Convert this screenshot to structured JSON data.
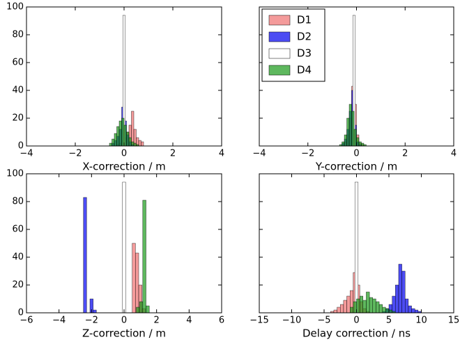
{
  "chart_data": [
    {
      "type": "histogram",
      "xlabel": "X-correction / m",
      "xlim": [
        -4,
        4
      ],
      "xticks": [
        {
          "value": -4,
          "label": "−4"
        },
        {
          "value": -2,
          "label": "−2"
        },
        0,
        2,
        4
      ],
      "ylim": [
        0,
        100
      ],
      "yticks": [
        0,
        20,
        40,
        60,
        80,
        100
      ],
      "ytick_labels": true,
      "series": [
        {
          "name": "D1",
          "color": "#f07070",
          "bins": [
            -0.3,
            -0.2,
            -0.1,
            0.0,
            0.1,
            0.2,
            0.3,
            0.4,
            0.5,
            0.6,
            0.7,
            0.8
          ],
          "values": [
            1,
            2,
            4,
            6,
            10,
            15,
            25,
            12,
            6,
            4,
            3
          ]
        },
        {
          "name": "D2",
          "color": "#0000ee",
          "bins": [
            -0.5,
            -0.4,
            -0.3,
            -0.2,
            -0.1,
            0.0,
            0.1,
            0.2,
            0.3,
            0.4
          ],
          "values": [
            2,
            4,
            7,
            12,
            28,
            18,
            8,
            3,
            1
          ]
        },
        {
          "name": "D3",
          "color": "#ffffff",
          "bins": [
            -0.05,
            0.05
          ],
          "values": [
            94
          ]
        },
        {
          "name": "D4",
          "color": "#1a9a1a",
          "bins": [
            -0.6,
            -0.5,
            -0.4,
            -0.3,
            -0.2,
            -0.1,
            0.0,
            0.1,
            0.2,
            0.3,
            0.4,
            0.5,
            0.6
          ],
          "values": [
            2,
            5,
            9,
            14,
            18,
            20,
            15,
            10,
            6,
            3,
            2,
            1
          ]
        }
      ]
    },
    {
      "type": "histogram",
      "xlabel": "Y-correction / m",
      "xlim": [
        -4,
        4
      ],
      "xticks": [
        {
          "value": -4,
          "label": "−4"
        },
        {
          "value": -2,
          "label": "−2"
        },
        0,
        2,
        4
      ],
      "ylim": [
        0,
        100
      ],
      "yticks": [
        0,
        20,
        40,
        60,
        80,
        100
      ],
      "ytick_labels": false,
      "legend": "upper left",
      "series": [
        {
          "name": "D1",
          "color": "#f07070",
          "bins": [
            -0.6,
            -0.5,
            -0.4,
            -0.3,
            -0.2,
            -0.1,
            0.0,
            0.1,
            0.2,
            0.3
          ],
          "values": [
            1,
            3,
            8,
            20,
            43,
            30,
            8,
            2,
            1
          ]
        },
        {
          "name": "D2",
          "color": "#0000ee",
          "bins": [
            -0.6,
            -0.5,
            -0.4,
            -0.3,
            -0.2,
            -0.1,
            0.0,
            0.1,
            0.2
          ],
          "values": [
            2,
            5,
            12,
            25,
            40,
            15,
            3,
            1
          ]
        },
        {
          "name": "D3",
          "color": "#ffffff",
          "bins": [
            -0.15,
            -0.05
          ],
          "values": [
            94
          ]
        },
        {
          "name": "D4",
          "color": "#1a9a1a",
          "bins": [
            -0.7,
            -0.6,
            -0.5,
            -0.4,
            -0.3,
            -0.2,
            -0.1,
            0.0,
            0.1,
            0.2,
            0.3,
            0.4
          ],
          "values": [
            1,
            3,
            8,
            20,
            30,
            25,
            12,
            6,
            3,
            2,
            1
          ]
        }
      ]
    },
    {
      "type": "histogram",
      "xlabel": "Z-correction / m",
      "xlim": [
        -6,
        6
      ],
      "xticks": [
        {
          "value": -6,
          "label": "−6"
        },
        {
          "value": -4,
          "label": "−4"
        },
        {
          "value": -2,
          "label": "−2"
        },
        0,
        2,
        4,
        6
      ],
      "ylim": [
        0,
        100
      ],
      "yticks": [
        0,
        20,
        40,
        60,
        80,
        100
      ],
      "ytick_labels": true,
      "series": [
        {
          "name": "D1",
          "color": "#f07070",
          "bins": [
            0.5,
            0.7,
            0.9,
            1.1,
            1.3
          ],
          "values": [
            50,
            43,
            20,
            3
          ]
        },
        {
          "name": "D2",
          "color": "#0000ee",
          "bins": [
            -2.5,
            -2.3,
            -2.1,
            -1.9,
            -1.7
          ],
          "values": [
            83,
            0,
            10,
            2
          ]
        },
        {
          "name": "D3",
          "color": "#ffffff",
          "bins": [
            -0.1,
            0.1
          ],
          "values": [
            94
          ]
        },
        {
          "name": "D4",
          "color": "#1a9a1a",
          "bins": [
            0.75,
            0.95,
            1.15,
            1.35,
            1.55
          ],
          "values": [
            4,
            8,
            81,
            5
          ]
        }
      ]
    },
    {
      "type": "histogram",
      "xlabel": "Delay correction / ns",
      "xlim": [
        -15,
        15
      ],
      "xticks": [
        {
          "value": -15,
          "label": "−15"
        },
        {
          "value": -10,
          "label": "−10"
        },
        {
          "value": -5,
          "label": "−5"
        },
        0,
        5,
        10,
        15
      ],
      "ylim": [
        0,
        100
      ],
      "yticks": [
        0,
        20,
        40,
        60,
        80,
        100
      ],
      "ytick_labels": false,
      "series": [
        {
          "name": "D1",
          "color": "#f07070",
          "bins": [
            -4,
            -3.5,
            -3,
            -2.5,
            -2,
            -1.5,
            -1,
            -0.5,
            0,
            0.5,
            1,
            1.5,
            2
          ],
          "values": [
            1,
            2,
            4,
            6,
            9,
            12,
            16,
            29,
            20,
            8,
            3,
            1
          ]
        },
        {
          "name": "D2",
          "color": "#0000ee",
          "bins": [
            4,
            4.5,
            5,
            5.5,
            6,
            6.5,
            7,
            7.5,
            8,
            8.5,
            9,
            9.5,
            10
          ],
          "values": [
            1,
            3,
            6,
            12,
            20,
            35,
            30,
            10,
            5,
            3,
            2,
            1
          ]
        },
        {
          "name": "D3",
          "color": "#ffffff",
          "bins": [
            -0.25,
            0.25
          ],
          "values": [
            94
          ]
        },
        {
          "name": "D4",
          "color": "#1a9a1a",
          "bins": [
            -1,
            -0.5,
            0,
            0.5,
            1,
            1.5,
            2,
            2.5,
            3,
            3.5,
            4,
            4.5,
            5,
            5.5,
            6
          ],
          "values": [
            4,
            8,
            10,
            12,
            9,
            15,
            11,
            10,
            8,
            6,
            4,
            3,
            2,
            1
          ]
        }
      ]
    }
  ]
}
